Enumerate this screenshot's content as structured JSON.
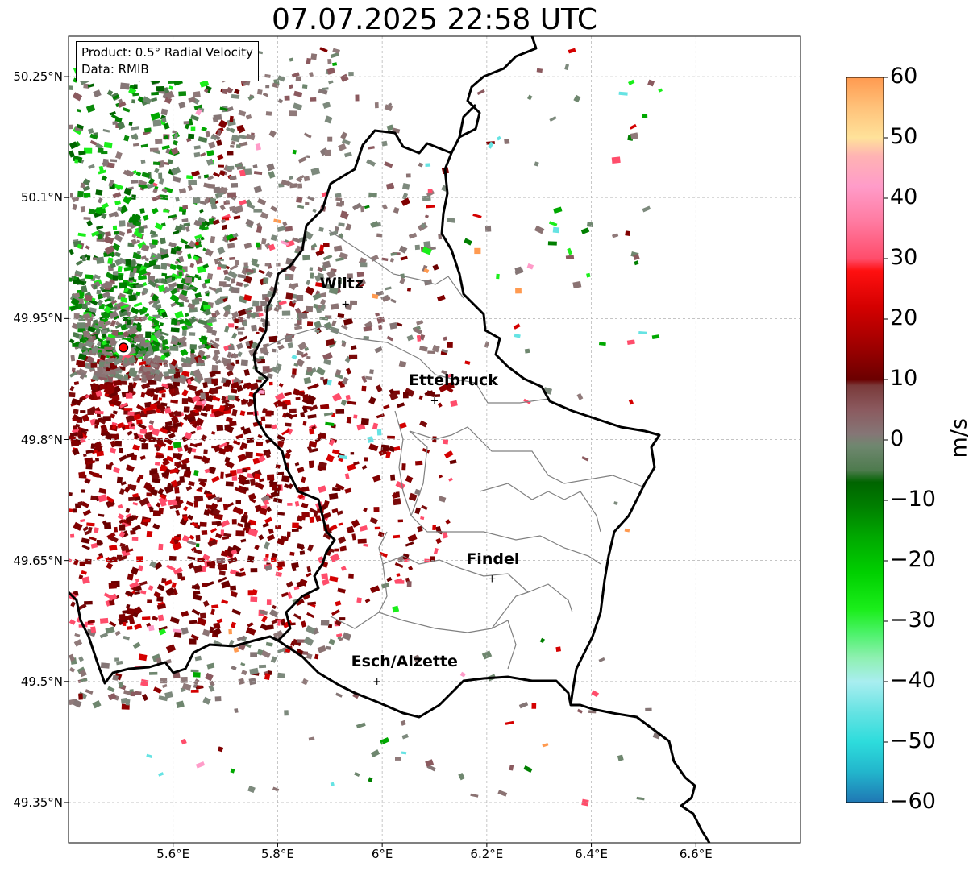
{
  "title": "07.07.2025 22:58 UTC",
  "info": {
    "product": "Product: 0.5° Radial Velocity",
    "data": "Data: RMIB"
  },
  "cities": [
    {
      "name": "Wiltz",
      "lon": 5.93,
      "lat": 49.968
    },
    {
      "name": "Ettelbruck",
      "lon": 6.1,
      "lat": 49.848
    },
    {
      "name": "Findel",
      "lon": 6.21,
      "lat": 49.627
    },
    {
      "name": "Esch/Alzette",
      "lon": 5.99,
      "lat": 49.5
    }
  ],
  "radar_site": {
    "lon": 5.505,
    "lat": 49.914
  },
  "axes": {
    "lon_range": [
      5.4,
      6.8
    ],
    "lat_range": [
      49.3,
      50.3
    ],
    "x_ticks": [
      {
        "value": 5.6,
        "label": "5.6°E"
      },
      {
        "value": 5.8,
        "label": "5.8°E"
      },
      {
        "value": 6.0,
        "label": "6°E"
      },
      {
        "value": 6.2,
        "label": "6.2°E"
      },
      {
        "value": 6.4,
        "label": "6.4°E"
      },
      {
        "value": 6.6,
        "label": "6.6°E"
      }
    ],
    "y_ticks": [
      {
        "value": 50.25,
        "label": "50.25°N"
      },
      {
        "value": 50.1,
        "label": "50.1°N"
      },
      {
        "value": 49.95,
        "label": "49.95°N"
      },
      {
        "value": 49.8,
        "label": "49.8°N"
      },
      {
        "value": 49.65,
        "label": "49.65°N"
      },
      {
        "value": 49.5,
        "label": "49.5°N"
      },
      {
        "value": 49.35,
        "label": "49.35°N"
      }
    ],
    "grid": true
  },
  "colorbar": {
    "unit": "m/s",
    "range": [
      -60,
      60
    ],
    "ticks": [
      {
        "value": 60,
        "label": "60"
      },
      {
        "value": 50,
        "label": "50"
      },
      {
        "value": 40,
        "label": "40"
      },
      {
        "value": 30,
        "label": "30"
      },
      {
        "value": 20,
        "label": "20"
      },
      {
        "value": 10,
        "label": "10"
      },
      {
        "value": 0,
        "label": "0"
      },
      {
        "value": -10,
        "label": "−10"
      },
      {
        "value": -20,
        "label": "−20"
      },
      {
        "value": -30,
        "label": "−30"
      },
      {
        "value": -40,
        "label": "−40"
      },
      {
        "value": -50,
        "label": "−50"
      },
      {
        "value": -60,
        "label": "−60"
      }
    ],
    "stops": [
      {
        "value": -60,
        "color": "#1f77b4"
      },
      {
        "value": -55,
        "color": "#22b5cc"
      },
      {
        "value": -50,
        "color": "#2ddcdc"
      },
      {
        "value": -45,
        "color": "#66e3e3"
      },
      {
        "value": -40,
        "color": "#a9eef0"
      },
      {
        "value": -36,
        "color": "#8ef0b0"
      },
      {
        "value": -32,
        "color": "#4cf26a"
      },
      {
        "value": -28,
        "color": "#1aee1a"
      },
      {
        "value": -22,
        "color": "#00d000"
      },
      {
        "value": -16,
        "color": "#00a800"
      },
      {
        "value": -11,
        "color": "#007f00"
      },
      {
        "value": -7,
        "color": "#006400"
      },
      {
        "value": -5,
        "color": "#4e7b4e"
      },
      {
        "value": -1,
        "color": "#6f876f"
      },
      {
        "value": 1,
        "color": "#857676"
      },
      {
        "value": 5,
        "color": "#8b5a5f"
      },
      {
        "value": 9,
        "color": "#7a3a3a"
      },
      {
        "value": 10,
        "color": "#6b0000"
      },
      {
        "value": 15,
        "color": "#9a0000"
      },
      {
        "value": 22,
        "color": "#d40000"
      },
      {
        "value": 28,
        "color": "#ff1010"
      },
      {
        "value": 30,
        "color": "#ff4d6b"
      },
      {
        "value": 36,
        "color": "#ff7aa0"
      },
      {
        "value": 42,
        "color": "#ff9cc9"
      },
      {
        "value": 47,
        "color": "#ffb3b3"
      },
      {
        "value": 50,
        "color": "#ffe29a"
      },
      {
        "value": 55,
        "color": "#ffc27a"
      },
      {
        "value": 60,
        "color": "#ff9a50"
      }
    ]
  },
  "colors": {
    "border": "#000000",
    "cantons": "#808080",
    "grid": "#b0b0b0",
    "inbound": "#008000",
    "outbound": "#800000",
    "radar_marker": "#ff0000"
  }
}
